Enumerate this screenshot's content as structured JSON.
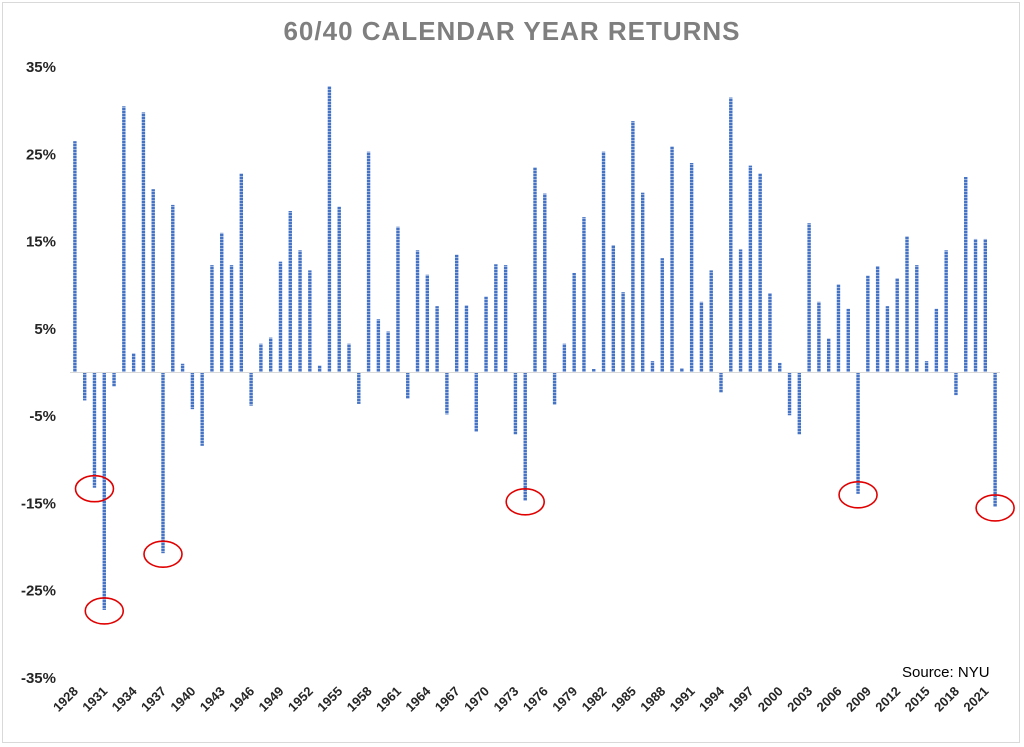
{
  "chart_data": {
    "type": "bar",
    "title": "60/40 CALENDAR YEAR RETURNS",
    "source": "Source: NYU",
    "ylim": [
      -35,
      35
    ],
    "yticks": [
      "35%",
      "25%",
      "15%",
      "5%",
      "-5%",
      "-15%",
      "-25%",
      "-35%"
    ],
    "ytick_values": [
      35,
      25,
      15,
      5,
      -5,
      -15,
      -25,
      -35
    ],
    "grid": false,
    "bar_color": "#4472c4",
    "highlight_color": "#e00000",
    "categories": [
      1928,
      1929,
      1930,
      1931,
      1932,
      1933,
      1934,
      1935,
      1936,
      1937,
      1938,
      1939,
      1940,
      1941,
      1942,
      1943,
      1944,
      1945,
      1946,
      1947,
      1948,
      1949,
      1950,
      1951,
      1952,
      1953,
      1954,
      1955,
      1956,
      1957,
      1958,
      1959,
      1960,
      1961,
      1962,
      1963,
      1964,
      1965,
      1966,
      1967,
      1968,
      1969,
      1970,
      1971,
      1972,
      1973,
      1974,
      1975,
      1976,
      1977,
      1978,
      1979,
      1980,
      1981,
      1982,
      1983,
      1984,
      1985,
      1986,
      1987,
      1988,
      1989,
      1990,
      1991,
      1992,
      1993,
      1994,
      1995,
      1996,
      1997,
      1998,
      1999,
      2000,
      2001,
      2002,
      2003,
      2004,
      2005,
      2006,
      2007,
      2008,
      2009,
      2010,
      2011,
      2012,
      2013,
      2014,
      2015,
      2016,
      2017,
      2018,
      2019,
      2020,
      2021,
      2022
    ],
    "x_tick_labels": [
      "1928",
      "1931",
      "1934",
      "1937",
      "1940",
      "1943",
      "1946",
      "1949",
      "1952",
      "1955",
      "1958",
      "1961",
      "1964",
      "1967",
      "1970",
      "1973",
      "1976",
      "1979",
      "1982",
      "1985",
      "1988",
      "1991",
      "1994",
      "1997",
      "2000",
      "2003",
      "2006",
      "2009",
      "2012",
      "2015",
      "2018",
      "2021"
    ],
    "values": [
      26.5,
      -3.2,
      -13.2,
      -27.2,
      -1.6,
      30.5,
      2.2,
      29.8,
      21.0,
      -20.7,
      19.2,
      1.0,
      -4.2,
      -8.4,
      12.3,
      16.0,
      12.3,
      22.8,
      -3.8,
      3.3,
      4.0,
      12.7,
      18.5,
      14.0,
      11.7,
      0.8,
      32.8,
      19.0,
      3.3,
      -3.6,
      25.3,
      6.1,
      4.7,
      16.7,
      -3.0,
      14.0,
      11.2,
      7.6,
      -4.8,
      13.5,
      7.7,
      -6.8,
      8.7,
      12.4,
      12.3,
      -7.1,
      -14.7,
      23.5,
      20.5,
      -3.7,
      3.3,
      11.4,
      17.8,
      0.4,
      25.3,
      14.6,
      9.2,
      28.8,
      20.6,
      1.3,
      13.1,
      25.9,
      0.5,
      24.0,
      8.1,
      11.7,
      -2.3,
      31.5,
      14.1,
      23.7,
      22.8,
      9.1,
      1.1,
      -4.9,
      -7.1,
      17.1,
      8.1,
      3.9,
      10.1,
      7.3,
      -13.9,
      11.1,
      12.2,
      7.6,
      10.8,
      15.6,
      12.3,
      1.3,
      7.3,
      14.0,
      -2.6,
      22.4,
      15.3,
      15.3,
      -15.4
    ],
    "circled_years": [
      1930,
      1931,
      1937,
      1974,
      2008,
      2022
    ]
  }
}
